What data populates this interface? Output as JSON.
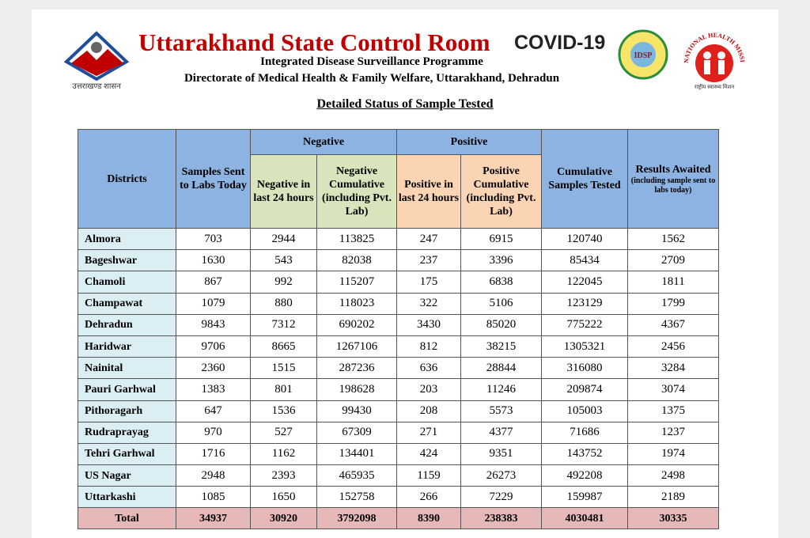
{
  "header": {
    "title": "Uttarakhand State Control Room",
    "subtitle": "Integrated Disease Surveillance Programme",
    "department": "Directorate of Medical Health & Family Welfare, Uttarakhand, Dehradun",
    "govt_logo_text": "उत्तराखण्ड शासन",
    "covid_label": "COVID-19",
    "idsp_label": "IDSP",
    "nhm_label": "NATIONAL HEALTH MISSION",
    "nhm_hindi": "राष्ट्रीय स्वास्थ्य मिशन"
  },
  "table": {
    "caption": "Detailed Status of Sample Tested",
    "columns": {
      "districts": "Districts",
      "samples_sent": "Samples Sent to Labs Today",
      "negative": "Negative",
      "negative_24h": "Negative in last 24 hours",
      "negative_cumulative": "Negative Cumulative (including Pvt. Lab)",
      "positive": "Positive",
      "positive_24h": "Positive in last 24 hours",
      "positive_cumulative": "Positive Cumulative (including Pvt. Lab)",
      "cumulative_tested": "Cumulative Samples Tested",
      "results_awaited": "Results Awaited",
      "results_awaited_note": "(including sample sent to labs today)"
    },
    "rows": [
      [
        "Almora",
        703,
        2944,
        113825,
        247,
        6915,
        120740,
        1562
      ],
      [
        "Bageshwar",
        1630,
        543,
        82038,
        237,
        3396,
        85434,
        2709
      ],
      [
        "Chamoli",
        867,
        992,
        115207,
        175,
        6838,
        122045,
        1811
      ],
      [
        "Champawat",
        1079,
        880,
        118023,
        322,
        5106,
        123129,
        1799
      ],
      [
        "Dehradun",
        9843,
        7312,
        690202,
        3430,
        85020,
        775222,
        4367
      ],
      [
        "Haridwar",
        9706,
        8665,
        1267106,
        812,
        38215,
        1305321,
        2456
      ],
      [
        "Nainital",
        2360,
        1515,
        287236,
        636,
        28844,
        316080,
        3284
      ],
      [
        "Pauri Garhwal",
        1383,
        801,
        198628,
        203,
        11246,
        209874,
        3074
      ],
      [
        "Pithoragarh",
        647,
        1536,
        99430,
        208,
        5573,
        105003,
        1375
      ],
      [
        "Rudraprayag",
        970,
        527,
        67309,
        271,
        4377,
        71686,
        1237
      ],
      [
        "Tehri Garhwal",
        1716,
        1162,
        134401,
        424,
        9351,
        143752,
        1974
      ],
      [
        "US Nagar",
        2948,
        2393,
        465935,
        1159,
        26273,
        492208,
        2498
      ],
      [
        "Uttarkashi",
        1085,
        1650,
        152758,
        266,
        7229,
        159987,
        2189
      ]
    ],
    "total": [
      "Total",
      34937,
      30920,
      3792098,
      8390,
      238383,
      4030481,
      30335
    ]
  }
}
